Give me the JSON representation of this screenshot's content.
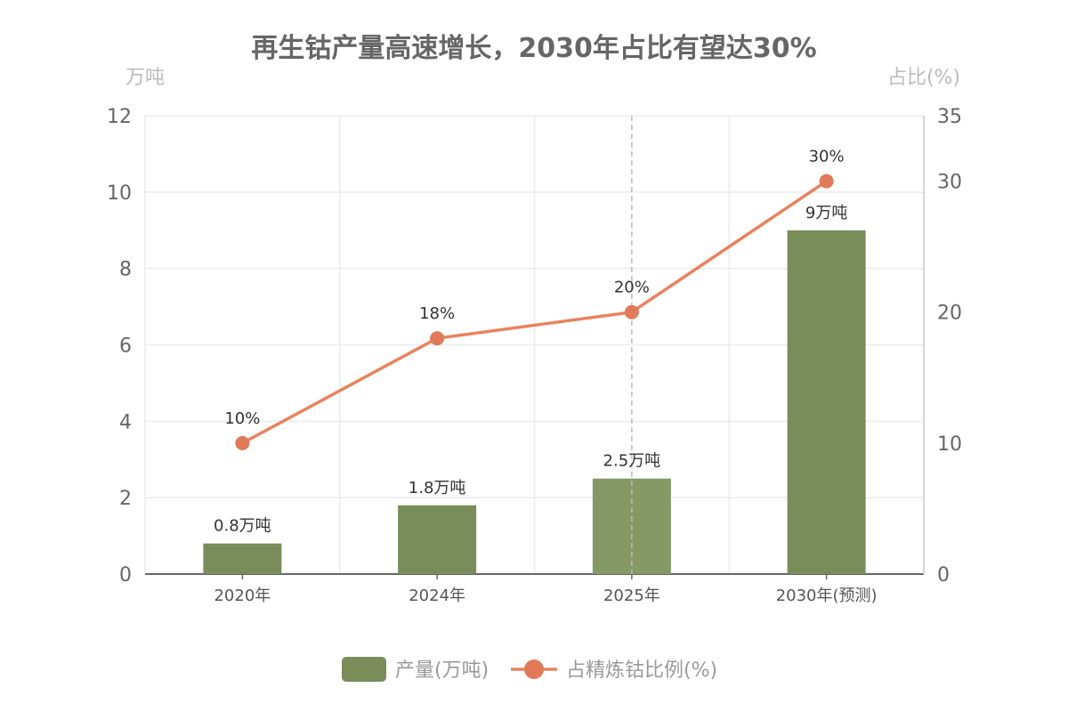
{
  "chart_data": {
    "type": "bar+line",
    "title": "再生钴产量高速增长，2030年占比有望达30%",
    "categories": [
      "2020年",
      "2024年",
      "2025年",
      "2030年(预测)"
    ],
    "left_axis": {
      "unit": "万吨",
      "min": 0,
      "max": 12,
      "ticks": [
        "0",
        "2",
        "4",
        "6",
        "8",
        "10",
        "12"
      ]
    },
    "right_axis": {
      "unit": "占比(%)",
      "min": 0,
      "max": 35,
      "ticks": [
        "0",
        "10",
        "20",
        "30",
        "35"
      ]
    },
    "series": [
      {
        "name": "产量(万吨)",
        "type": "bar",
        "axis": "left",
        "values": [
          0.8,
          1.8,
          2.5,
          9
        ],
        "labels": [
          "0.8万吨",
          "1.8万吨",
          "2.5万吨",
          "9万吨"
        ],
        "color": "#798c5a",
        "highlight_color": "#869964"
      },
      {
        "name": "占精炼钴比例(%)",
        "type": "line",
        "axis": "right",
        "values": [
          10,
          18,
          20,
          30
        ],
        "labels": [
          "10%",
          "18%",
          "20%",
          "30%"
        ],
        "color": "#e8835e",
        "marker_color": "#e07a5a"
      }
    ],
    "grid": true,
    "crosshair_category": "2025年",
    "legend": "bottom-center"
  }
}
